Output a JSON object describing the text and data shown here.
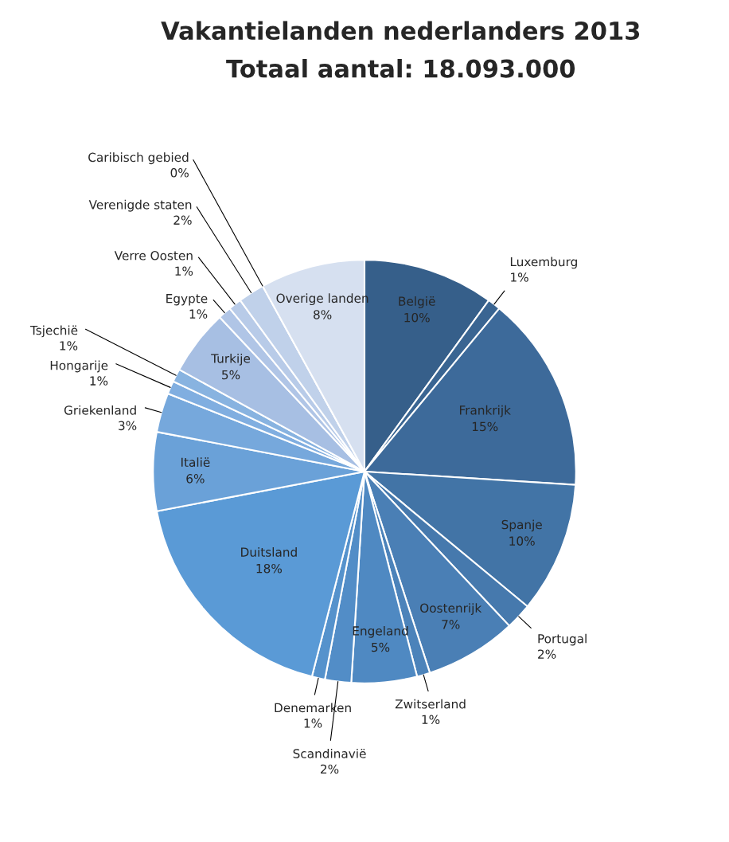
{
  "chart_data": {
    "type": "pie",
    "title": "Vakantielanden nederlanders 2013",
    "subtitle": "Totaal aantal: 18.093.000",
    "categories": [
      "België",
      "Luxemburg",
      "Frankrijk",
      "Spanje",
      "Portugal",
      "Oostenrijk",
      "Zwitserland",
      "Engeland",
      "Scandinavië",
      "Denemarken",
      "Duitsland",
      "Italië",
      "Griekenland",
      "Hongarije",
      "Tsjechië",
      "Turkije",
      "Egypte",
      "Verre Oosten",
      "Verenigde staten",
      "Caribisch gebied",
      "Overige landen"
    ],
    "values": [
      10,
      1,
      15,
      10,
      2,
      7,
      1,
      5,
      2,
      1,
      18,
      6,
      3,
      1,
      1,
      5,
      1,
      1,
      2,
      0,
      8
    ],
    "value_labels": [
      "10%",
      "1%",
      "15%",
      "10%",
      "2%",
      "7%",
      "1%",
      "5%",
      "2%",
      "1%",
      "18%",
      "6%",
      "3%",
      "1%",
      "1%",
      "5%",
      "1%",
      "1%",
      "2%",
      "0%",
      "8%"
    ],
    "colors": [
      "#365f8a",
      "#3a6592",
      "#3d6a9a",
      "#4274a6",
      "#4679ad",
      "#4a7fb5",
      "#4c83ba",
      "#4f89c2",
      "#528dc7",
      "#5592cc",
      "#5a9ad6",
      "#6aa1d8",
      "#76a8dc",
      "#80aee0",
      "#88b3e0",
      "#a7bfe3",
      "#b0c5e6",
      "#b8cbe8",
      "#c0d1ea",
      "#c8d6ec",
      "#d6e0f0"
    ],
    "legend": false
  }
}
